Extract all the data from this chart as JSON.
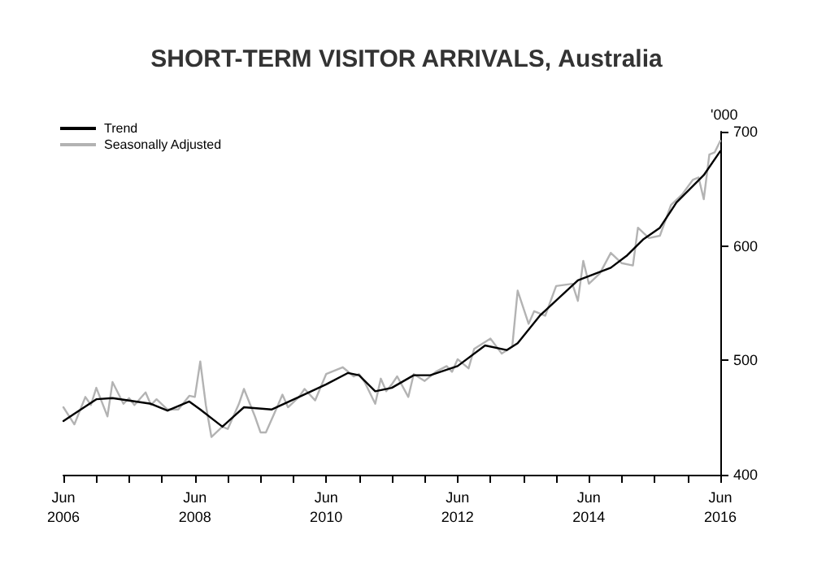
{
  "chart_data": {
    "type": "line",
    "title": "SHORT-TERM VISITOR ARRIVALS, Australia",
    "ylabel": "'000",
    "series": [
      {
        "name": "Trend",
        "color": "#000000",
        "x": [
          "2006-06",
          "2006-12",
          "2007-03",
          "2007-10",
          "2008-01",
          "2008-05",
          "2008-07",
          "2008-11",
          "2009-03",
          "2009-08",
          "2010-01",
          "2010-06",
          "2010-10",
          "2010-12",
          "2011-03",
          "2011-06",
          "2011-10",
          "2012-01",
          "2012-06",
          "2012-11",
          "2013-03",
          "2013-05",
          "2013-09",
          "2014-04",
          "2014-10",
          "2015-01",
          "2015-04",
          "2015-07",
          "2015-10",
          "2016-03",
          "2016-06"
        ],
        "values": [
          447,
          466,
          467,
          462,
          456,
          464,
          457,
          442,
          459,
          457,
          468,
          479,
          489,
          487,
          473,
          476,
          487,
          487,
          495,
          513,
          509,
          515,
          539,
          570,
          581,
          592,
          606,
          616,
          638,
          662,
          683
        ]
      },
      {
        "name": "Seasonally Adjusted",
        "color": "#b3b3b3",
        "x": [
          "2006-06",
          "2006-08",
          "2006-10",
          "2006-11",
          "2006-12",
          "2007-02",
          "2007-03",
          "2007-05",
          "2007-06",
          "2007-07",
          "2007-09",
          "2007-10",
          "2007-11",
          "2008-01",
          "2008-03",
          "2008-05",
          "2008-06",
          "2008-07",
          "2008-08",
          "2008-09",
          "2008-11",
          "2008-12",
          "2009-02",
          "2009-03",
          "2009-05",
          "2009-06",
          "2009-07",
          "2009-09",
          "2009-10",
          "2009-11",
          "2010-01",
          "2010-02",
          "2010-04",
          "2010-06",
          "2010-09",
          "2010-11",
          "2010-12",
          "2011-01",
          "2011-03",
          "2011-04",
          "2011-05",
          "2011-06",
          "2011-07",
          "2011-09",
          "2011-10",
          "2011-12",
          "2012-02",
          "2012-04",
          "2012-05",
          "2012-06",
          "2012-08",
          "2012-09",
          "2012-12",
          "2013-02",
          "2013-04",
          "2013-05",
          "2013-07",
          "2013-08",
          "2013-10",
          "2013-12",
          "2014-03",
          "2014-04",
          "2014-05",
          "2014-06",
          "2014-08",
          "2014-10",
          "2014-12",
          "2015-02",
          "2015-03",
          "2015-05",
          "2015-07",
          "2015-09",
          "2015-11",
          "2016-01",
          "2016-02",
          "2016-03",
          "2016-04",
          "2016-05",
          "2016-06"
        ],
        "values": [
          459,
          444,
          468,
          461,
          476,
          451,
          481,
          462,
          467,
          461,
          472,
          461,
          466,
          457,
          457,
          469,
          468,
          499,
          461,
          433,
          442,
          440,
          462,
          475,
          451,
          437,
          437,
          459,
          470,
          459,
          468,
          475,
          465,
          488,
          494,
          486,
          488,
          481,
          462,
          484,
          473,
          479,
          486,
          468,
          488,
          482,
          490,
          495,
          490,
          501,
          493,
          510,
          519,
          506,
          512,
          561,
          532,
          543,
          539,
          565,
          567,
          552,
          587,
          567,
          576,
          594,
          585,
          583,
          616,
          607,
          609,
          636,
          645,
          658,
          660,
          641,
          680,
          682,
          692
        ]
      }
    ],
    "xlim": [
      "2006-06",
      "2016-06"
    ],
    "xticks": [
      {
        "value": "2006-06",
        "label": "Jun\n2006"
      },
      {
        "value": "2006-12",
        "label": null
      },
      {
        "value": "2007-06",
        "label": null
      },
      {
        "value": "2007-12",
        "label": null
      },
      {
        "value": "2008-06",
        "label": "Jun\n2008"
      },
      {
        "value": "2008-12",
        "label": null
      },
      {
        "value": "2009-06",
        "label": null
      },
      {
        "value": "2009-12",
        "label": null
      },
      {
        "value": "2010-06",
        "label": "Jun\n2010"
      },
      {
        "value": "2010-12",
        "label": null
      },
      {
        "value": "2011-06",
        "label": null
      },
      {
        "value": "2011-12",
        "label": null
      },
      {
        "value": "2012-06",
        "label": "Jun\n2012"
      },
      {
        "value": "2012-12",
        "label": null
      },
      {
        "value": "2013-06",
        "label": null
      },
      {
        "value": "2013-12",
        "label": null
      },
      {
        "value": "2014-06",
        "label": "Jun\n2014"
      },
      {
        "value": "2014-12",
        "label": null
      },
      {
        "value": "2015-06",
        "label": null
      },
      {
        "value": "2015-12",
        "label": null
      },
      {
        "value": "2016-06",
        "label": "Jun\n2016"
      }
    ],
    "ylim": [
      400,
      700
    ],
    "yticks": [
      400,
      500,
      600,
      700
    ],
    "grid": false,
    "legend": "top left",
    "marker": "none",
    "line_style": "solid"
  }
}
